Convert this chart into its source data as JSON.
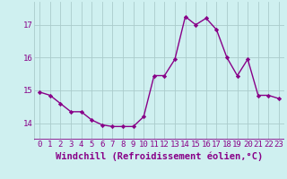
{
  "x": [
    0,
    1,
    2,
    3,
    4,
    5,
    6,
    7,
    8,
    9,
    10,
    11,
    12,
    13,
    14,
    15,
    16,
    17,
    18,
    19,
    20,
    21,
    22,
    23
  ],
  "y": [
    14.95,
    14.85,
    14.6,
    14.35,
    14.35,
    14.1,
    13.95,
    13.9,
    13.9,
    13.9,
    14.2,
    15.45,
    15.45,
    15.95,
    17.25,
    17.0,
    17.2,
    16.85,
    16.0,
    15.45,
    15.95,
    14.85,
    14.85,
    14.75
  ],
  "line_color": "#880088",
  "marker": "D",
  "marker_size": 2.2,
  "bg_color": "#cff0f0",
  "grid_color": "#aacccc",
  "xlabel": "Windchill (Refroidissement éolien,°C)",
  "xlabel_fontsize": 7.5,
  "ytick_labels": [
    "14",
    "15",
    "16",
    "17"
  ],
  "ytick_vals": [
    14,
    15,
    16,
    17
  ],
  "xticks": [
    0,
    1,
    2,
    3,
    4,
    5,
    6,
    7,
    8,
    9,
    10,
    11,
    12,
    13,
    14,
    15,
    16,
    17,
    18,
    19,
    20,
    21,
    22,
    23
  ],
  "ylim": [
    13.5,
    17.7
  ],
  "xlim": [
    -0.5,
    23.5
  ],
  "tick_fontsize": 6.5,
  "line_width": 1.0
}
